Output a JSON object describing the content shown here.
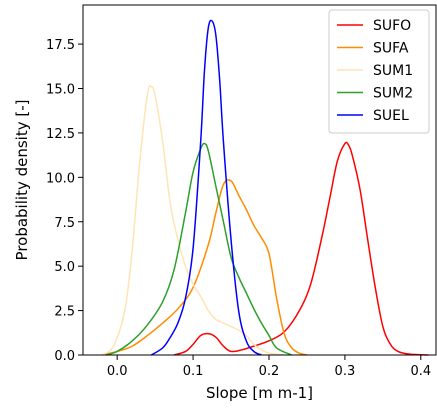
{
  "chart_data": {
    "type": "line",
    "title": "",
    "xlabel": "Slope [m m-1]",
    "ylabel": "Probability density [-]",
    "xlim": [
      -0.045,
      0.42
    ],
    "ylim": [
      0,
      19.7
    ],
    "x_ticks": [
      0.0,
      0.1,
      0.2,
      0.3,
      0.4
    ],
    "x_tick_labels": [
      "0.0",
      "0.1",
      "0.2",
      "0.3",
      "0.4"
    ],
    "y_ticks": [
      0.0,
      2.5,
      5.0,
      7.5,
      10.0,
      12.5,
      15.0,
      17.5
    ],
    "y_tick_labels": [
      "0.0",
      "2.5",
      "5.0",
      "7.5",
      "10.0",
      "12.5",
      "15.0",
      "17.5"
    ],
    "grid": false,
    "legend_position": "top-right",
    "series": [
      {
        "name": "SUFO",
        "color": "#ff0000",
        "x": [
          0.075,
          0.09,
          0.1,
          0.11,
          0.12,
          0.13,
          0.14,
          0.15,
          0.165,
          0.18,
          0.2,
          0.22,
          0.24,
          0.255,
          0.27,
          0.28,
          0.29,
          0.3,
          0.305,
          0.31,
          0.32,
          0.33,
          0.34,
          0.35,
          0.36,
          0.37,
          0.385,
          0.41
        ],
        "y": [
          0.0,
          0.2,
          0.6,
          1.1,
          1.2,
          1.0,
          0.5,
          0.2,
          0.3,
          0.5,
          0.8,
          1.3,
          2.5,
          4.0,
          6.7,
          8.8,
          10.9,
          11.9,
          11.8,
          11.2,
          9.3,
          6.5,
          3.8,
          1.6,
          0.6,
          0.2,
          0.05,
          0.0
        ]
      },
      {
        "name": "SUFA",
        "color": "#ff8c00",
        "x": [
          -0.02,
          0.0,
          0.02,
          0.04,
          0.06,
          0.08,
          0.1,
          0.12,
          0.13,
          0.14,
          0.15,
          0.16,
          0.17,
          0.18,
          0.19,
          0.2,
          0.21,
          0.22,
          0.23,
          0.24,
          0.25
        ],
        "y": [
          0.0,
          0.2,
          0.5,
          1.1,
          1.8,
          2.6,
          3.8,
          6.2,
          8.0,
          9.6,
          9.8,
          9.0,
          8.2,
          7.3,
          6.6,
          5.7,
          3.2,
          1.2,
          0.4,
          0.1,
          0.0
        ]
      },
      {
        "name": "SUM1",
        "color": "#ffe4b5",
        "x": [
          -0.02,
          -0.005,
          0.01,
          0.02,
          0.03,
          0.04,
          0.045,
          0.05,
          0.06,
          0.07,
          0.08,
          0.09,
          0.1,
          0.11,
          0.12,
          0.13,
          0.14,
          0.15,
          0.16,
          0.17,
          0.18,
          0.19,
          0.2,
          0.21,
          0.22
        ],
        "y": [
          0.0,
          0.5,
          2.5,
          6.0,
          11.0,
          14.7,
          15.1,
          14.6,
          12.0,
          8.5,
          6.5,
          5.0,
          4.0,
          3.3,
          2.5,
          2.0,
          1.8,
          1.6,
          1.4,
          1.1,
          0.6,
          0.3,
          0.1,
          0.05,
          0.0
        ]
      },
      {
        "name": "SUM2",
        "color": "#2ca02c",
        "x": [
          -0.015,
          0.0,
          0.02,
          0.04,
          0.06,
          0.075,
          0.09,
          0.1,
          0.11,
          0.115,
          0.12,
          0.13,
          0.14,
          0.15,
          0.16,
          0.17,
          0.18,
          0.19,
          0.2,
          0.21,
          0.23
        ],
        "y": [
          0.0,
          0.2,
          0.8,
          1.7,
          3.0,
          4.8,
          8.0,
          10.3,
          11.6,
          11.9,
          11.5,
          9.5,
          7.5,
          5.5,
          4.4,
          3.5,
          2.6,
          1.8,
          1.1,
          0.4,
          0.0
        ]
      },
      {
        "name": "SUEL",
        "color": "#0000ff",
        "x": [
          0.045,
          0.06,
          0.07,
          0.08,
          0.09,
          0.1,
          0.11,
          0.115,
          0.12,
          0.125,
          0.13,
          0.135,
          0.14,
          0.15,
          0.16,
          0.17,
          0.18,
          0.19
        ],
        "y": [
          0.0,
          0.4,
          1.0,
          1.8,
          3.2,
          6.0,
          12.0,
          16.0,
          18.4,
          18.8,
          18.0,
          15.5,
          12.0,
          6.5,
          2.5,
          0.8,
          0.2,
          0.0
        ]
      }
    ]
  }
}
